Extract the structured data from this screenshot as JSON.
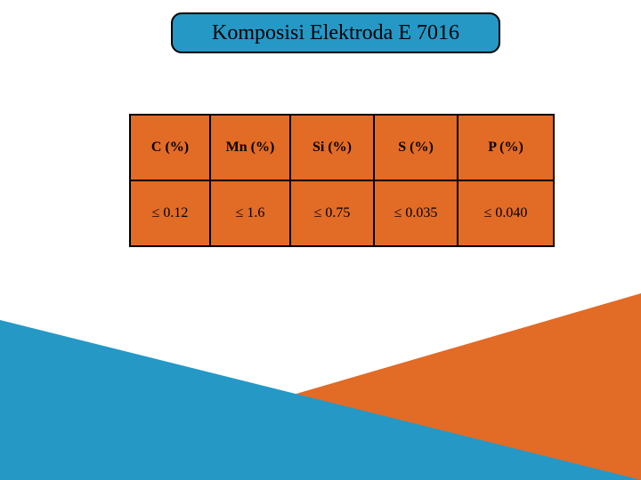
{
  "title": "Komposisi Elektroda E 7016",
  "table": {
    "headers": [
      "C (%)",
      "Mn (%)",
      "Si (%)",
      "S (%)",
      "P (%)"
    ],
    "values": [
      "≤ 0.12",
      "≤ 1.6",
      "≤ 0.75",
      "≤ 0.035",
      "≤ 0.040"
    ]
  },
  "colors": {
    "teal": "#2598c6",
    "orange": "#e26b26",
    "border": "#000000",
    "bg": "#ffffff"
  }
}
